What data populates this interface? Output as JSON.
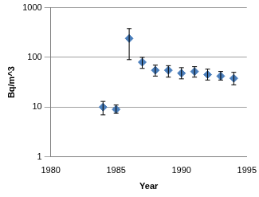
{
  "chart_data": {
    "type": "scatter",
    "x_label": "Year",
    "y_label": "Bq/m^3",
    "x": [
      1984,
      1985,
      1986,
      1987,
      1988,
      1989,
      1990,
      1991,
      1992,
      1993,
      1994
    ],
    "values": [
      10,
      9,
      240,
      80,
      55,
      55,
      48,
      52,
      45,
      42,
      38
    ],
    "error_low": [
      7,
      7.5,
      90,
      60,
      42,
      40,
      37,
      40,
      35,
      35,
      28
    ],
    "error_high": [
      13,
      11,
      380,
      100,
      70,
      68,
      62,
      65,
      58,
      52,
      50
    ],
    "color": "#4a7ebb",
    "marker": "diamond",
    "xlim": [
      1980,
      1995
    ],
    "xticks": [
      1980,
      1985,
      1990,
      1995
    ],
    "ylim": [
      1,
      1000
    ],
    "yticks": [
      1,
      10,
      100,
      1000
    ],
    "log": "y",
    "grid": true
  }
}
